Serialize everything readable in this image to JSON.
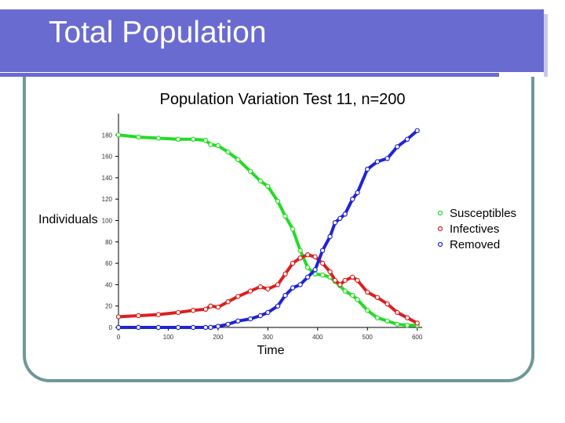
{
  "slide": {
    "title": "Total Population"
  },
  "colors": {
    "title_bar": "#6a6bd1",
    "frame": "#6f9898",
    "susceptibles": "#22dd22",
    "infectives": "#dd1f1f",
    "removed": "#1f24d6"
  },
  "chart_data": {
    "type": "scatter",
    "title": "Population Variation Test 11, n=200",
    "xlabel": "Time",
    "ylabel": "Individuals",
    "xlim": [
      0,
      610
    ],
    "ylim": [
      0,
      200
    ],
    "x_ticks": [
      "0",
      "100",
      "200",
      "300",
      "400",
      "500",
      "600"
    ],
    "y_ticks": [
      "0",
      "20",
      "40",
      "60",
      "80",
      "100",
      "120",
      "140",
      "160",
      "180"
    ],
    "grid": false,
    "legend_position": "right",
    "series": [
      {
        "name": "Susceptibles",
        "color": "#22dd22",
        "x": [
          0,
          40,
          80,
          120,
          150,
          175,
          185,
          200,
          220,
          240,
          265,
          285,
          300,
          320,
          335,
          350,
          365,
          380,
          395,
          410,
          425,
          435,
          445,
          455,
          470,
          480,
          500,
          520,
          540,
          560,
          580,
          600
        ],
        "y": [
          180,
          178,
          177,
          176,
          176,
          175,
          171,
          170,
          164,
          157,
          146,
          137,
          132,
          118,
          104,
          92,
          72,
          56,
          50,
          49,
          47,
          43,
          39,
          34,
          30,
          26,
          16,
          9,
          6,
          3,
          2,
          2
        ]
      },
      {
        "name": "Infectives",
        "color": "#dd1f1f",
        "x": [
          0,
          40,
          80,
          120,
          150,
          175,
          185,
          200,
          220,
          240,
          265,
          285,
          300,
          320,
          335,
          350,
          365,
          380,
          395,
          410,
          425,
          435,
          445,
          455,
          470,
          480,
          500,
          520,
          540,
          560,
          580,
          600
        ],
        "y": [
          10,
          11,
          12,
          14,
          16,
          17,
          20,
          19,
          24,
          29,
          34,
          38,
          36,
          40,
          50,
          60,
          65,
          68,
          66,
          60,
          52,
          44,
          40,
          44,
          47,
          44,
          33,
          28,
          22,
          14,
          9,
          4
        ]
      },
      {
        "name": "Removed",
        "color": "#1f24d6",
        "x": [
          0,
          40,
          80,
          120,
          150,
          175,
          185,
          200,
          220,
          240,
          265,
          285,
          300,
          320,
          335,
          350,
          365,
          380,
          395,
          410,
          425,
          435,
          445,
          455,
          470,
          480,
          500,
          520,
          540,
          560,
          580,
          600
        ],
        "y": [
          0,
          0,
          0,
          0,
          0,
          0,
          0,
          1,
          3,
          6,
          8,
          11,
          14,
          20,
          30,
          37,
          40,
          47,
          54,
          72,
          85,
          98,
          102,
          106,
          120,
          126,
          148,
          155,
          158,
          169,
          176,
          184
        ]
      }
    ]
  }
}
